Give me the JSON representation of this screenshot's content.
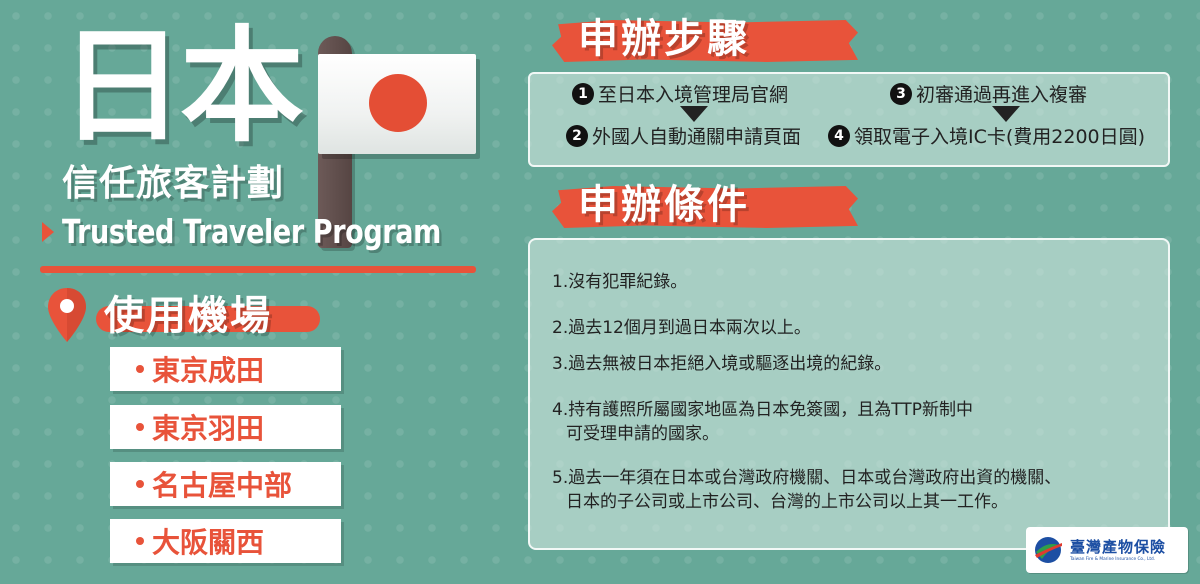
{
  "header": {
    "title": "日本",
    "subtitle_zh": "信任旅客計劃",
    "subtitle_en": "Trusted Traveler Program"
  },
  "airports": {
    "heading": "使用機場",
    "items": [
      "東京成田",
      "東京羽田",
      "名古屋中部",
      "大阪關西"
    ]
  },
  "steps": {
    "heading": "申辦步驟",
    "items": [
      {
        "num": "1",
        "text": "至日本入境管理局官網"
      },
      {
        "num": "2",
        "text": "外國人自動通關申請頁面"
      },
      {
        "num": "3",
        "text": "初審通過再進入複審"
      },
      {
        "num": "4",
        "text": "領取電子入境IC卡(費用2200日圓)"
      }
    ]
  },
  "conditions": {
    "heading": "申辦條件",
    "items": [
      {
        "lines": [
          "1.沒有犯罪紀錄。"
        ]
      },
      {
        "lines": [
          "2.過去12個月到過日本兩次以上。"
        ]
      },
      {
        "lines": [
          "3.過去無被日本拒絕入境或驅逐出境的紀錄。"
        ]
      },
      {
        "lines": [
          "4.持有護照所屬國家地區為日本免簽國，且為TTP新制中",
          "可受理申請的國家。"
        ]
      },
      {
        "lines": [
          "5.過去一年須在日本或台灣政府機關、日本或台灣政府出資的機關、",
          "日本的子公司或上市公司、台灣的上市公司以上其一工作。"
        ]
      }
    ]
  },
  "logo": {
    "name_zh": "臺灣產物保險",
    "name_en": "Taiwan Fire & Marine Insurance Co., Ltd."
  },
  "colors": {
    "background": "#66a898",
    "accent": "#e8533a",
    "flag_sun": "#e44e35",
    "logo_blue": "#1d4fa3"
  }
}
